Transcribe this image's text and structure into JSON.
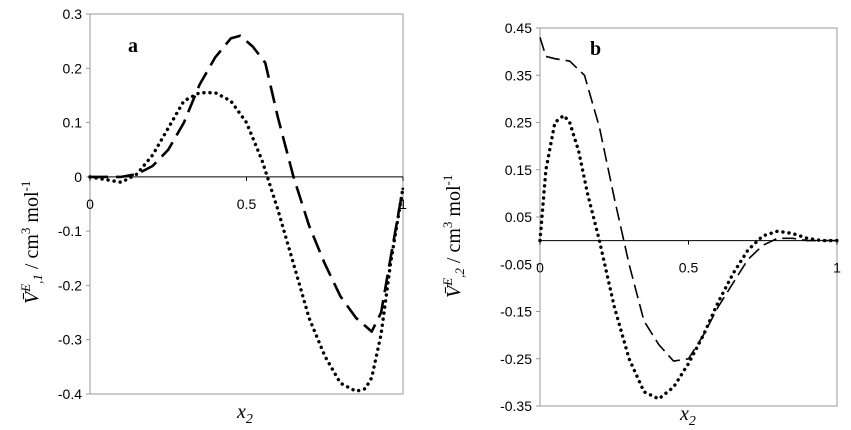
{
  "chart_data": [
    {
      "type": "line",
      "panel_label": "a",
      "xlabel": "x",
      "xlabel_sub": "2",
      "ylabel_parts": {
        "sym": "V̄",
        "sup": "E",
        "sub": ",1",
        "units": " / cm",
        "cube": "3",
        "mol": " mol",
        "neg": "-1"
      },
      "xlim": [
        0,
        1
      ],
      "ylim": [
        -0.4,
        0.3
      ],
      "x_ticks": [
        "0",
        "0.5",
        "1"
      ],
      "y_ticks": [
        "0.3",
        "0.2",
        "0.1",
        "0",
        "-0.1",
        "-0.2",
        "-0.3",
        "-0.4"
      ],
      "x_tick_values": [
        0,
        0.5,
        1
      ],
      "y_tick_values": [
        0.3,
        0.2,
        0.1,
        0,
        -0.1,
        -0.2,
        -0.3,
        -0.4
      ],
      "series": [
        {
          "style": "dashed",
          "x": [
            0,
            0.05,
            0.1,
            0.15,
            0.2,
            0.25,
            0.3,
            0.35,
            0.4,
            0.45,
            0.48,
            0.52,
            0.56,
            0.6,
            0.65,
            0.7,
            0.75,
            0.8,
            0.85,
            0.9,
            0.93,
            0.96,
            1.0
          ],
          "y": [
            0,
            0,
            0,
            0.005,
            0.02,
            0.05,
            0.1,
            0.17,
            0.22,
            0.255,
            0.26,
            0.24,
            0.21,
            0.11,
            0.0,
            -0.09,
            -0.16,
            -0.22,
            -0.26,
            -0.285,
            -0.25,
            -0.15,
            -0.02
          ]
        },
        {
          "style": "dotted",
          "x": [
            0,
            0.05,
            0.1,
            0.15,
            0.2,
            0.25,
            0.3,
            0.35,
            0.4,
            0.45,
            0.5,
            0.55,
            0.6,
            0.65,
            0.7,
            0.75,
            0.8,
            0.85,
            0.88,
            0.9,
            0.93,
            0.96,
            1.0
          ],
          "y": [
            0,
            -0.005,
            -0.01,
            0.005,
            0.04,
            0.09,
            0.14,
            0.155,
            0.155,
            0.14,
            0.1,
            0.03,
            -0.06,
            -0.16,
            -0.26,
            -0.33,
            -0.38,
            -0.395,
            -0.39,
            -0.37,
            -0.29,
            -0.16,
            -0.02
          ]
        }
      ]
    },
    {
      "type": "line",
      "panel_label": "b",
      "xlabel": "x",
      "xlabel_sub": "2",
      "ylabel_parts": {
        "sym": "V̄",
        "sup": "E",
        "sub": ",2",
        "units": " / cm",
        "cube": "3",
        "mol": " mol",
        "neg": "-1"
      },
      "xlim": [
        0,
        1
      ],
      "ylim": [
        -0.35,
        0.45
      ],
      "x_ticks": [
        "0",
        "0.5",
        "1"
      ],
      "y_ticks": [
        "0.45",
        "0.35",
        "0.25",
        "0.15",
        "0.05",
        "-0.05",
        "-0.15",
        "-0.25",
        "-0.35"
      ],
      "x_tick_values": [
        0,
        0.5,
        1
      ],
      "y_tick_values": [
        0.45,
        0.35,
        0.25,
        0.15,
        0.05,
        -0.05,
        -0.15,
        -0.25,
        -0.35
      ],
      "series": [
        {
          "style": "dashed",
          "x": [
            0,
            0.02,
            0.05,
            0.1,
            0.15,
            0.2,
            0.25,
            0.3,
            0.35,
            0.4,
            0.45,
            0.5,
            0.55,
            0.6,
            0.65,
            0.7,
            0.75,
            0.8,
            0.85,
            0.9,
            0.95,
            1.0
          ],
          "y": [
            0.43,
            0.39,
            0.385,
            0.38,
            0.35,
            0.24,
            0.09,
            -0.05,
            -0.17,
            -0.22,
            -0.255,
            -0.25,
            -0.2,
            -0.14,
            -0.09,
            -0.04,
            -0.01,
            0.005,
            0.005,
            0.0,
            0.0,
            0.0
          ],
          "x_fixed": true
        },
        {
          "style": "dotted",
          "x": [
            0,
            0.02,
            0.05,
            0.08,
            0.1,
            0.13,
            0.16,
            0.2,
            0.25,
            0.3,
            0.35,
            0.4,
            0.45,
            0.5,
            0.55,
            0.6,
            0.65,
            0.7,
            0.75,
            0.8,
            0.85,
            0.9,
            0.95,
            1.0
          ],
          "y": [
            0.0,
            0.15,
            0.25,
            0.265,
            0.25,
            0.19,
            0.1,
            0.0,
            -0.14,
            -0.25,
            -0.32,
            -0.335,
            -0.31,
            -0.26,
            -0.2,
            -0.13,
            -0.07,
            -0.02,
            0.01,
            0.02,
            0.015,
            0.005,
            0.0,
            0.0
          ]
        }
      ]
    }
  ]
}
